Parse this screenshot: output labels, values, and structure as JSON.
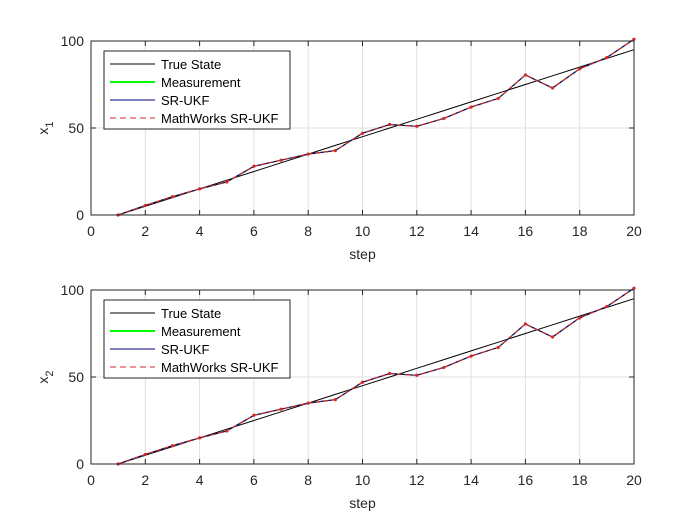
{
  "chart_data": [
    {
      "type": "line",
      "xlabel": "step",
      "ylabel": "x",
      "ylabel_sub": "1",
      "xlim": [
        0,
        20
      ],
      "ylim": [
        0,
        100
      ],
      "xticks": [
        0,
        2,
        4,
        6,
        8,
        10,
        12,
        14,
        16,
        18,
        20
      ],
      "yticks": [
        0,
        50,
        100
      ],
      "grid": true,
      "legend_position": "top-left",
      "x": [
        1,
        2,
        3,
        4,
        5,
        6,
        7,
        8,
        9,
        10,
        11,
        12,
        13,
        14,
        15,
        16,
        17,
        18,
        19,
        20
      ],
      "series": [
        {
          "name": "True State",
          "color": "#000000",
          "style": "solid",
          "values": [
            0,
            5,
            10,
            15,
            20,
            25,
            30,
            35,
            40,
            45,
            50,
            55,
            60,
            65,
            70,
            75,
            80,
            85,
            90,
            95
          ]
        },
        {
          "name": "Measurement",
          "color": "#00ff00",
          "style": "solid",
          "values": [
            0,
            5.5,
            10.5,
            15,
            19,
            28,
            31.5,
            35,
            37,
            47,
            52,
            51,
            55.5,
            62,
            67,
            80.5,
            73,
            84,
            90.5,
            101
          ]
        },
        {
          "name": "SR-UKF",
          "color": "#00007f",
          "style": "solid",
          "values": [
            0,
            5.5,
            10.5,
            15,
            19,
            28,
            31.5,
            35,
            37,
            47,
            52,
            51,
            55.5,
            62,
            67,
            80.5,
            73,
            84,
            90.5,
            101
          ]
        },
        {
          "name": "MathWorks SR-UKF",
          "color": "#d62728",
          "style": "dashed",
          "values": [
            0,
            5.5,
            10.5,
            15,
            19,
            28,
            31.5,
            35,
            37,
            47,
            52,
            51,
            55.5,
            62,
            67,
            80.5,
            73,
            84,
            90.5,
            101
          ]
        }
      ]
    },
    {
      "type": "line",
      "xlabel": "step",
      "ylabel": "x",
      "ylabel_sub": "2",
      "xlim": [
        0,
        20
      ],
      "ylim": [
        0,
        100
      ],
      "xticks": [
        0,
        2,
        4,
        6,
        8,
        10,
        12,
        14,
        16,
        18,
        20
      ],
      "yticks": [
        0,
        50,
        100
      ],
      "grid": true,
      "legend_position": "top-left",
      "x": [
        1,
        2,
        3,
        4,
        5,
        6,
        7,
        8,
        9,
        10,
        11,
        12,
        13,
        14,
        15,
        16,
        17,
        18,
        19,
        20
      ],
      "series": [
        {
          "name": "True State",
          "color": "#000000",
          "style": "solid",
          "values": [
            0,
            5,
            10,
            15,
            20,
            25,
            30,
            35,
            40,
            45,
            50,
            55,
            60,
            65,
            70,
            75,
            80,
            85,
            90,
            95
          ]
        },
        {
          "name": "Measurement",
          "color": "#00ff00",
          "style": "solid",
          "values": [
            0,
            5.5,
            10.5,
            15,
            19,
            28,
            31.5,
            35,
            37,
            47,
            52,
            51,
            55.5,
            62,
            67,
            80.5,
            73,
            84,
            90.5,
            101
          ]
        },
        {
          "name": "SR-UKF",
          "color": "#00007f",
          "style": "solid",
          "values": [
            0,
            5.5,
            10.5,
            15,
            19,
            28,
            31.5,
            35,
            37,
            47,
            52,
            51,
            55.5,
            62,
            67,
            80.5,
            73,
            84,
            90.5,
            101
          ]
        },
        {
          "name": "MathWorks SR-UKF",
          "color": "#d62728",
          "style": "dashed",
          "values": [
            0,
            5.5,
            10.5,
            15,
            19,
            28,
            31.5,
            35,
            37,
            47,
            52,
            51,
            55.5,
            62,
            67,
            80.5,
            73,
            84,
            90.5,
            101
          ]
        }
      ]
    }
  ]
}
